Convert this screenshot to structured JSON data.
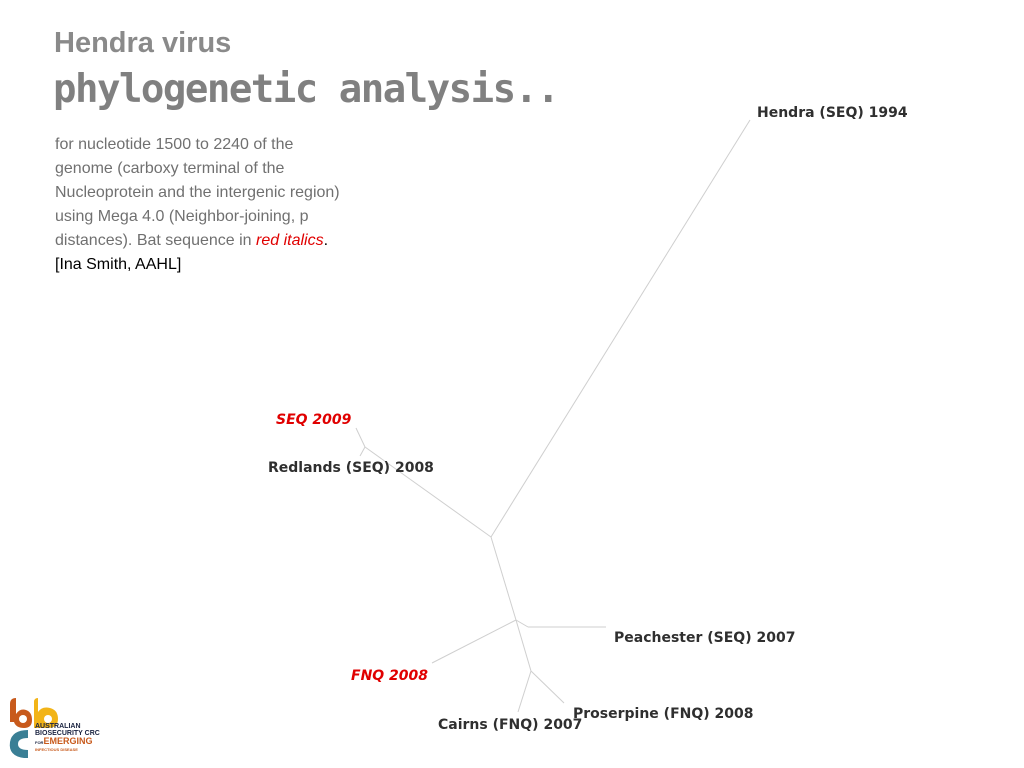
{
  "slide": {
    "title_line1": "Hendra virus",
    "title_line2": "phylogenetic analysis..",
    "description": {
      "text_main": "for nucleotide 1500 to 2240 of the genome (carboxy terminal of the Nucleoprotein and the intergenic region) using Mega 4.0 (Neighbor-joining, p distances). Bat sequence in ",
      "text_highlight": "red italics",
      "text_end": ".",
      "credit": "[Ina Smith, AAHL]"
    }
  },
  "tree": {
    "colors": {
      "branch": "#cfcfcf",
      "label": "#2f2f2f",
      "bat_label": "#e00000"
    },
    "leaves": [
      {
        "id": "hendra-seq-1994",
        "label": "Hendra (SEQ) 1994",
        "bat": false
      },
      {
        "id": "seq-2009",
        "label": "SEQ 2009",
        "bat": true
      },
      {
        "id": "redlands-seq-2008",
        "label": "Redlands (SEQ) 2008",
        "bat": false
      },
      {
        "id": "peachester-seq-2007",
        "label": "Peachester (SEQ) 2007",
        "bat": false
      },
      {
        "id": "fnq-2008",
        "label": "FNQ 2008",
        "bat": true
      },
      {
        "id": "proserpine-fnq-2008",
        "label": "Proserpine (FNQ) 2008",
        "bat": false
      },
      {
        "id": "cairns-fnq-2007",
        "label": "Cairns (FNQ) 2007",
        "bat": false
      }
    ]
  },
  "logo": {
    "line1": "AUSTRALIAN",
    "line2": "BIOSECURITY CRC",
    "line3_prefix": "FOR",
    "line3": "EMERGING",
    "line4": "INFECTIOUS DISEASE",
    "colors": {
      "orange": "#c85a1c",
      "yellow": "#f2b418",
      "navy": "#1a2340",
      "teal": "#3a7f95"
    }
  }
}
